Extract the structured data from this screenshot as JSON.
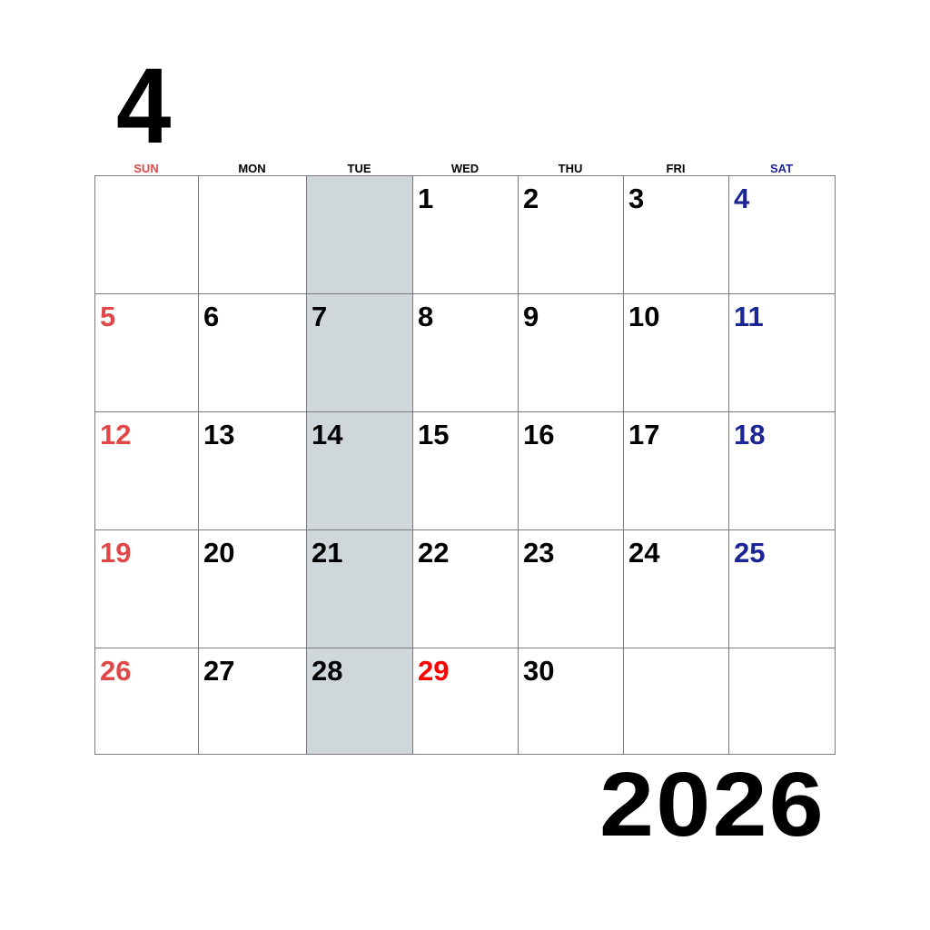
{
  "header": {
    "month": "4",
    "year": "2026"
  },
  "colors": {
    "sunday": "#e04848",
    "saturday": "#1c2596",
    "holiday": "#ff0000",
    "weekday": "#000000",
    "shade": "#cfd7db"
  },
  "weekdays": [
    {
      "label": "SUN",
      "kind": "sunday"
    },
    {
      "label": "MON",
      "kind": "weekday"
    },
    {
      "label": "TUE",
      "kind": "weekday"
    },
    {
      "label": "WED",
      "kind": "weekday"
    },
    {
      "label": "THU",
      "kind": "weekday"
    },
    {
      "label": "FRI",
      "kind": "weekday"
    },
    {
      "label": "SAT",
      "kind": "saturday"
    }
  ],
  "shaded_weekday": "TUE",
  "weeks": [
    [
      "",
      "",
      "",
      "1",
      "2",
      "3",
      "4"
    ],
    [
      "5",
      "6",
      "7",
      "8",
      "9",
      "10",
      "11"
    ],
    [
      "12",
      "13",
      "14",
      "15",
      "16",
      "17",
      "18"
    ],
    [
      "19",
      "20",
      "21",
      "22",
      "23",
      "24",
      "25"
    ],
    [
      "26",
      "27",
      "28",
      "29",
      "30",
      "",
      ""
    ]
  ],
  "holidays": [
    "29"
  ]
}
